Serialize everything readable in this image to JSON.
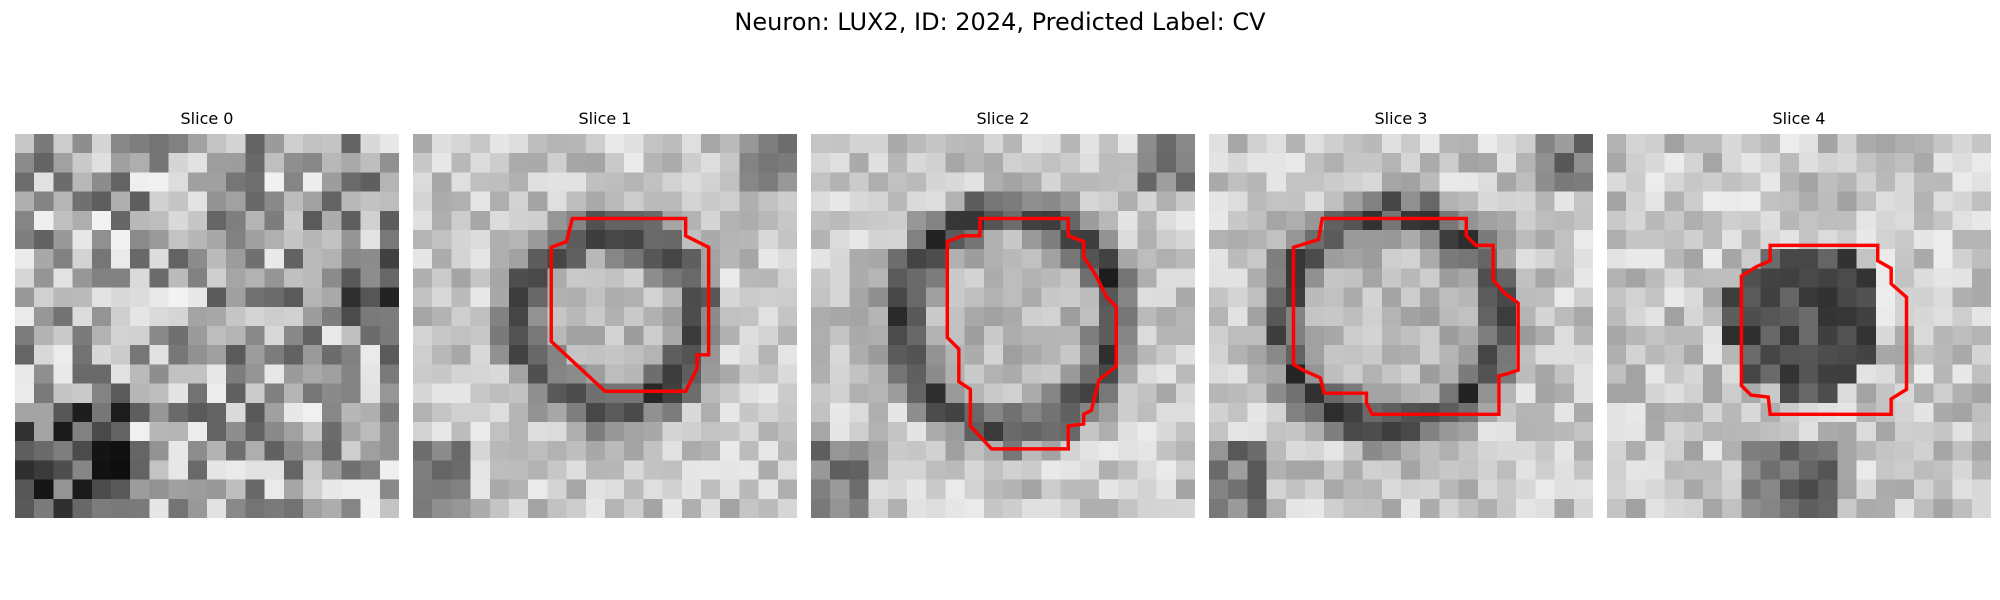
{
  "figure": {
    "title": "Neuron: LUX2, ID: 2024, Predicted Label: CV",
    "contour_color": "#ff0000",
    "colormap": "gray",
    "grid_size": 20
  },
  "panels": [
    {
      "title": "Slice 0",
      "pattern": "noise",
      "has_contour": false
    },
    {
      "title": "Slice 1",
      "pattern": "ring",
      "has_contour": true
    },
    {
      "title": "Slice 2",
      "pattern": "ring",
      "has_contour": true
    },
    {
      "title": "Slice 3",
      "pattern": "ring",
      "has_contour": true
    },
    {
      "title": "Slice 4",
      "pattern": "blob",
      "has_contour": true
    }
  ]
}
